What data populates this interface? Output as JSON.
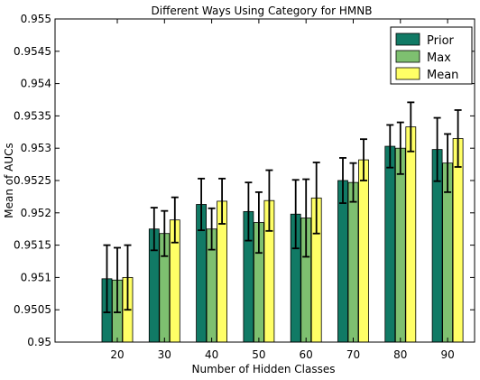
{
  "chart_data": {
    "type": "bar",
    "title": "Different Ways Using Category for HMNB",
    "xlabel": "Number of Hidden Classes",
    "ylabel": "Mean of AUCs",
    "categories": [
      "20",
      "30",
      "40",
      "50",
      "60",
      "70",
      "80",
      "90"
    ],
    "ylim": [
      0.95,
      0.955
    ],
    "yticks": [
      "0.95",
      "0.9505",
      "0.951",
      "0.9515",
      "0.952",
      "0.9525",
      "0.953",
      "0.9535",
      "0.954",
      "0.9545",
      "0.955"
    ],
    "grid": false,
    "legend_position": "top-right",
    "error_bars": true,
    "series": [
      {
        "name": "Prior",
        "color": "#117a65",
        "values": [
          0.95098,
          0.95175,
          0.95213,
          0.95202,
          0.95198,
          0.9525,
          0.95303,
          0.95298
        ],
        "errors": [
          0.00052,
          0.00033,
          0.0004,
          0.00045,
          0.00053,
          0.00035,
          0.00033,
          0.00049
        ]
      },
      {
        "name": "Max",
        "color": "#7ec070",
        "values": [
          0.95096,
          0.95168,
          0.95175,
          0.95185,
          0.95192,
          0.95247,
          0.953,
          0.95277
        ],
        "errors": [
          0.0005,
          0.00035,
          0.00032,
          0.00047,
          0.0006,
          0.0003,
          0.0004,
          0.00045
        ]
      },
      {
        "name": "Mean",
        "color": "#ffff66",
        "values": [
          0.951,
          0.95189,
          0.95218,
          0.95219,
          0.95223,
          0.95282,
          0.95333,
          0.95315
        ],
        "errors": [
          0.0005,
          0.00035,
          0.00035,
          0.00047,
          0.00055,
          0.00032,
          0.00038,
          0.00044
        ]
      }
    ]
  }
}
